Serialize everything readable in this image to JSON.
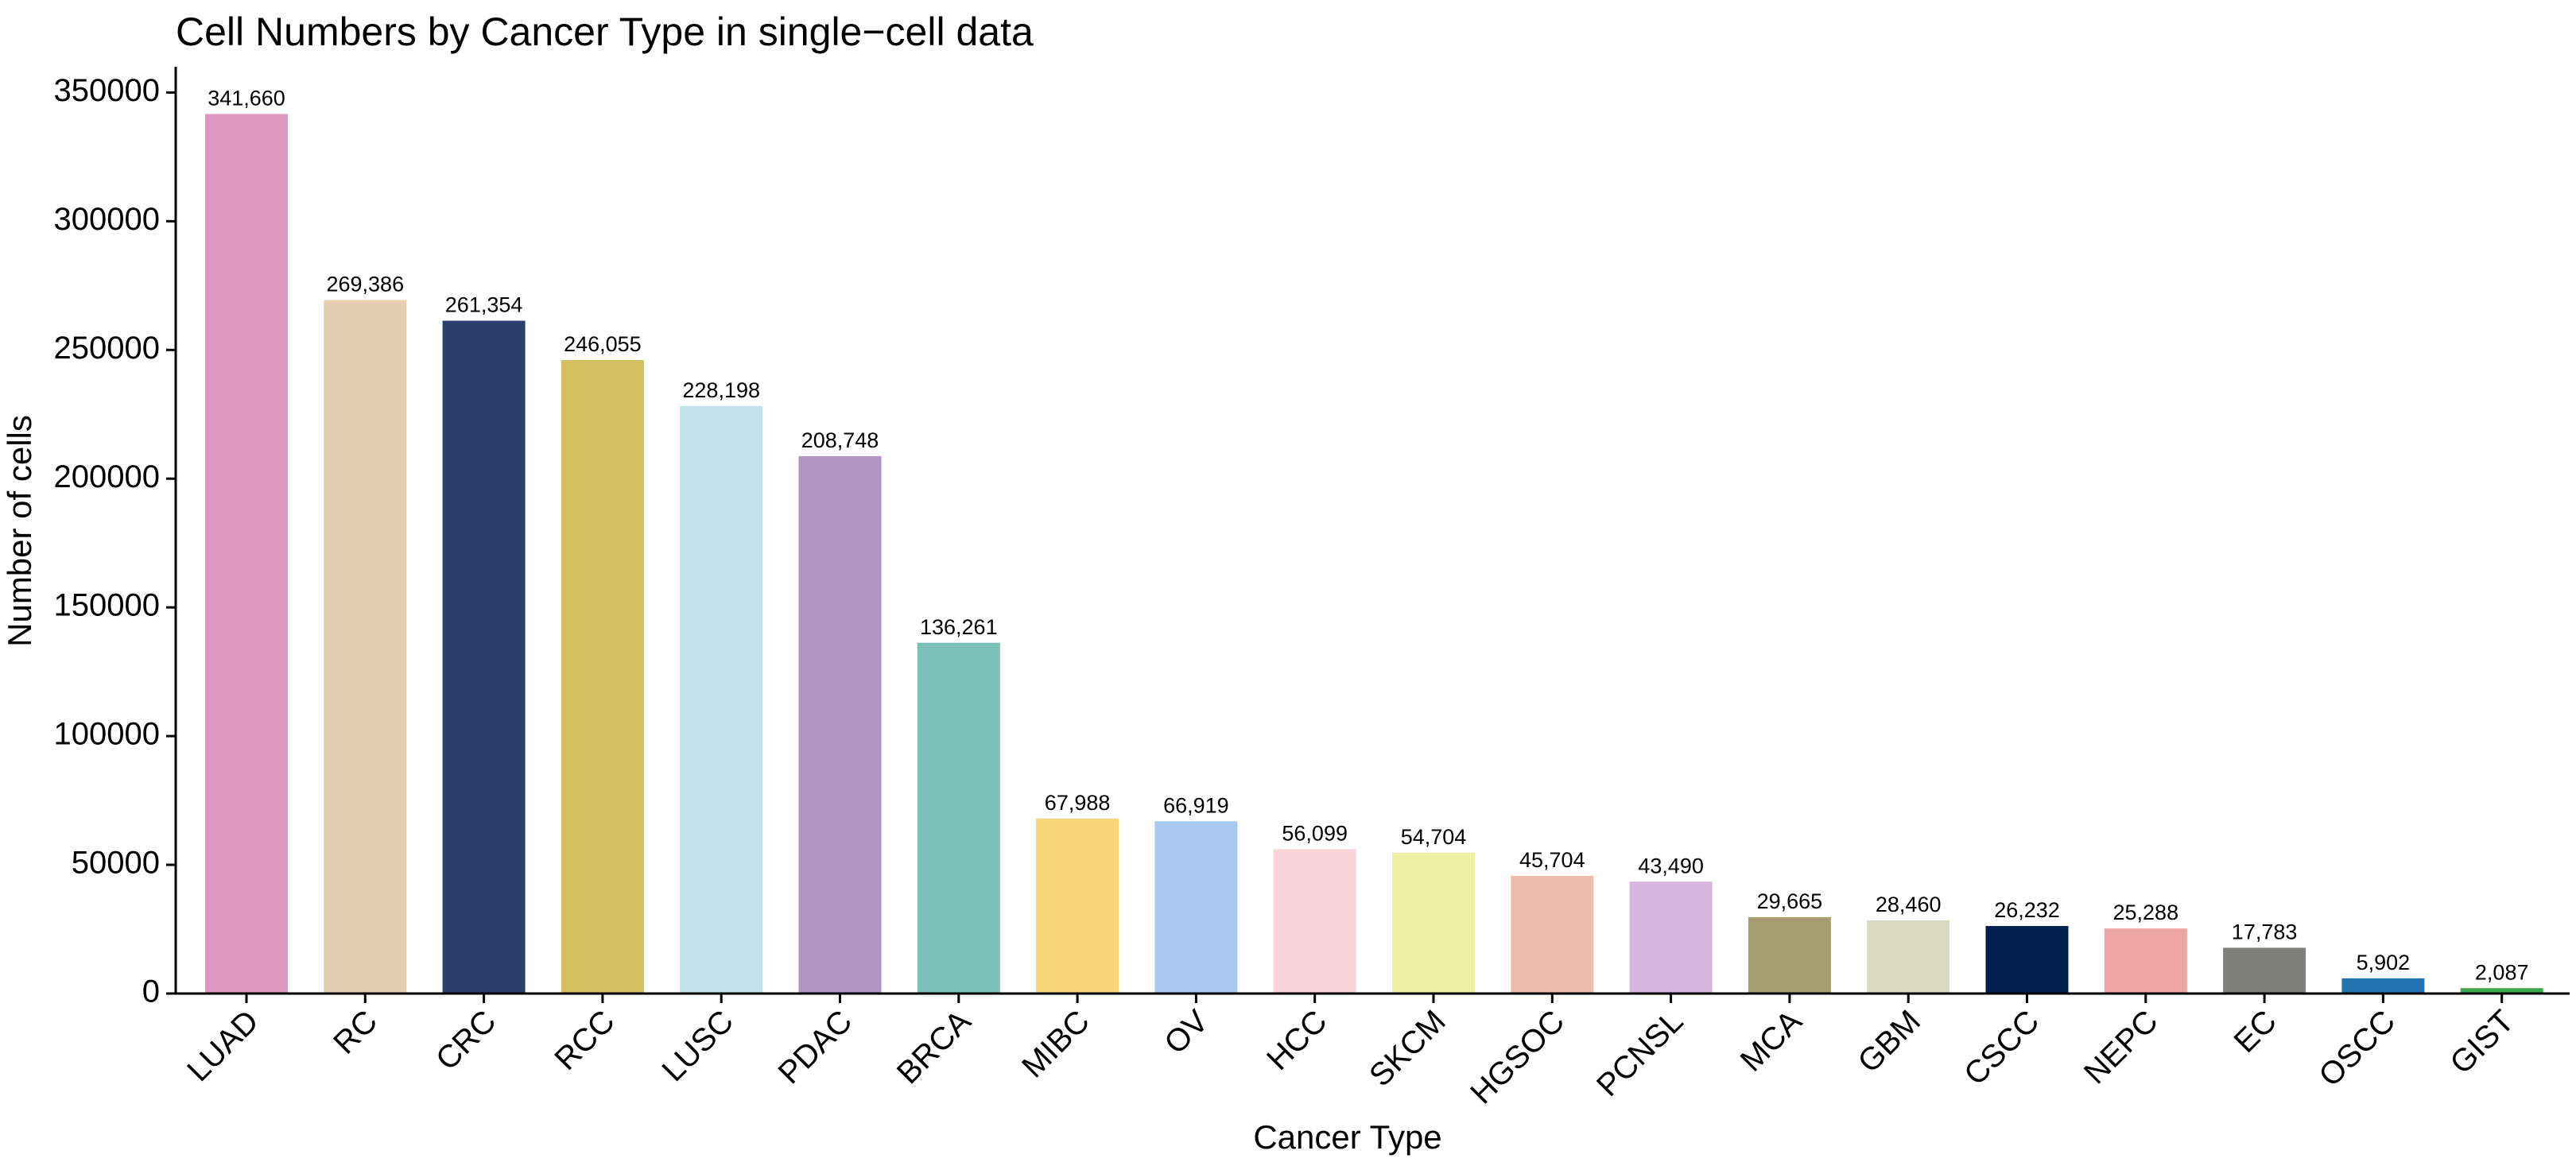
{
  "chart_data": {
    "type": "bar",
    "title": "Cell Numbers by Cancer Type in single−cell data",
    "x_label": "Cancer Type",
    "y_label": "Number of cells",
    "categories": [
      "LUAD",
      "RC",
      "CRC",
      "RCC",
      "LUSC",
      "PDAC",
      "BRCA",
      "MIBC",
      "OV",
      "HCC",
      "SKCM",
      "HGSOC",
      "PCNSL",
      "MCA",
      "GBM",
      "CSCC",
      "NEPC",
      "EC",
      "OSCC",
      "GIST"
    ],
    "values": [
      341660,
      269386,
      261354,
      246055,
      228198,
      208748,
      136261,
      67988,
      66919,
      56099,
      54704,
      45704,
      43490,
      29665,
      28460,
      26232,
      25288,
      17783,
      5902,
      2087
    ],
    "value_labels": [
      "341,660",
      "269,386",
      "261,354",
      "246,055",
      "228,198",
      "208,748",
      "136,261",
      "67,988",
      "66,919",
      "56,099",
      "54,704",
      "45,704",
      "43,490",
      "29,665",
      "28,460",
      "26,232",
      "25,288",
      "17,783",
      "5,902",
      "2,087"
    ],
    "colors": [
      "#DE97C0",
      "#E6CFB0",
      "#2C3E6D",
      "#D4BF60",
      "#C2E2EB",
      "#B196C3",
      "#7CC1B8",
      "#F7D77A",
      "#A9CAEF",
      "#F6D4DA",
      "#EFF0A6",
      "#ECBCA8",
      "#D8B6DF",
      "#A69D72",
      "#D8DAC2",
      "#012150",
      "#EDA5A5",
      "#7F7F7E",
      "#2174B0",
      "#3FA94E"
    ],
    "ylim": [
      0,
      360000
    ],
    "yticks": [
      0,
      50000,
      100000,
      150000,
      200000,
      250000,
      300000,
      350000
    ]
  }
}
